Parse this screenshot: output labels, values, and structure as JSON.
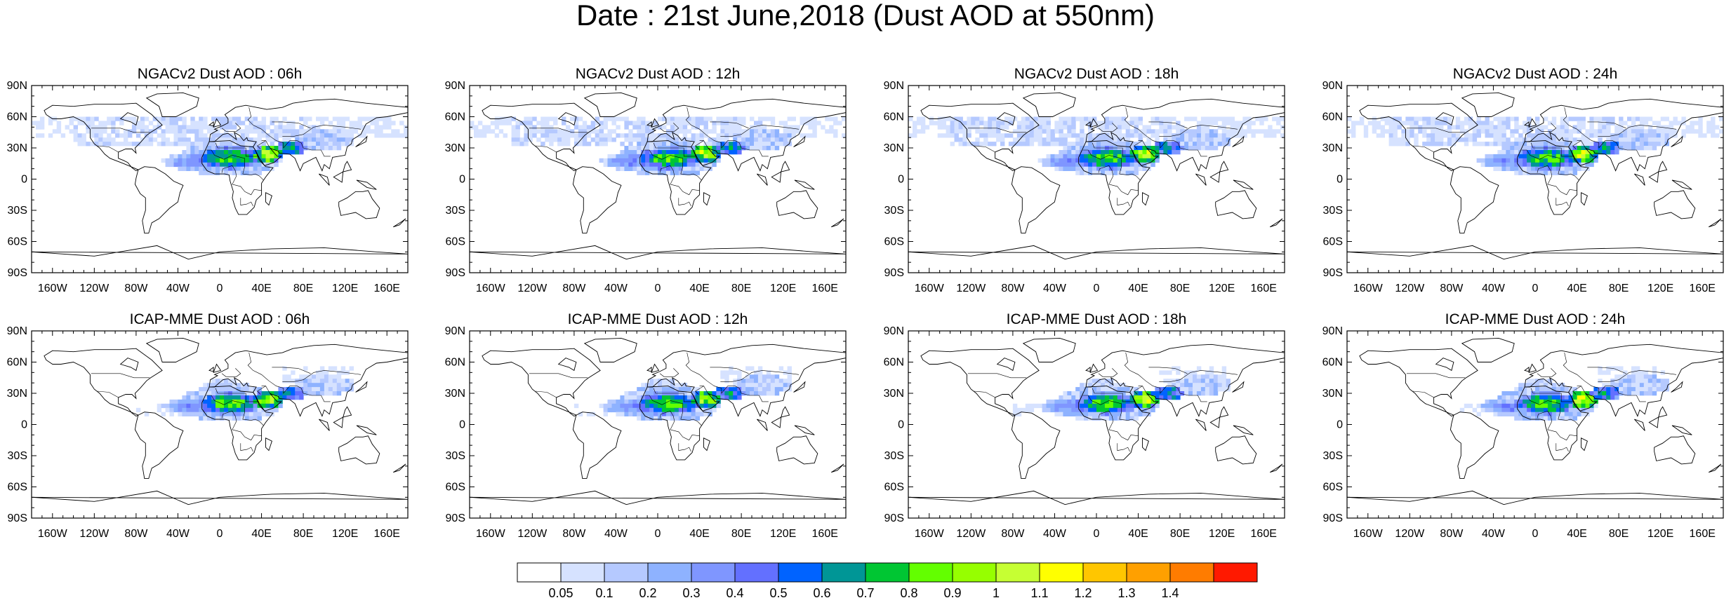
{
  "title": "Date : 21st June,2018 (Dust AOD at 550nm)",
  "panels": [
    {
      "title": "NGACv2 Dust AOD : 06h",
      "model": "ngac",
      "seed": 1
    },
    {
      "title": "NGACv2 Dust AOD : 12h",
      "model": "ngac",
      "seed": 2
    },
    {
      "title": "NGACv2 Dust AOD : 18h",
      "model": "ngac",
      "seed": 3
    },
    {
      "title": "NGACv2 Dust AOD : 24h",
      "model": "ngac",
      "seed": 4
    },
    {
      "title": "ICAP-MME Dust AOD : 06h",
      "model": "icap",
      "seed": 5
    },
    {
      "title": "ICAP-MME Dust AOD : 12h",
      "model": "icap",
      "seed": 6
    },
    {
      "title": "ICAP-MME Dust AOD : 18h",
      "model": "icap",
      "seed": 7
    },
    {
      "title": "ICAP-MME Dust AOD : 24h",
      "model": "icap",
      "seed": 8
    }
  ],
  "lat_labels": [
    "90N",
    "60N",
    "30N",
    "0",
    "30S",
    "60S",
    "90S"
  ],
  "lon_labels": [
    "160W",
    "120W",
    "80W",
    "40W",
    "0",
    "40E",
    "80E",
    "120E",
    "160E"
  ],
  "colorbar": {
    "labels": [
      "0.05",
      "0.1",
      "0.2",
      "0.3",
      "0.4",
      "0.5",
      "0.6",
      "0.7",
      "0.8",
      "0.9",
      "1",
      "1.1",
      "1.2",
      "1.3",
      "1.4"
    ],
    "colors": [
      "#ffffff",
      "#d6e2ff",
      "#b5c9ff",
      "#8eb2ff",
      "#7f96ff",
      "#6370ff",
      "#0063ff",
      "#009696",
      "#00c633",
      "#63ff00",
      "#96ff00",
      "#c6ff33",
      "#ffff00",
      "#ffc600",
      "#ffa000",
      "#ff7c00",
      "#ff1900"
    ]
  }
}
